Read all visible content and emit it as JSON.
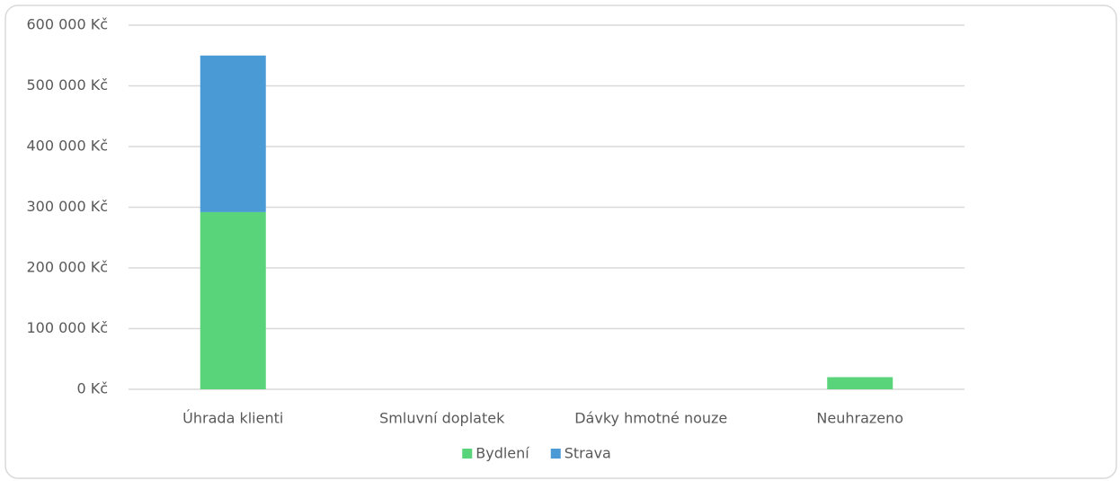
{
  "chart_data": {
    "type": "stacked_bar",
    "categories": [
      "Úhrada klienti",
      "Smluvní doplatek",
      "Dávky hmotné nouze",
      "Neuhrazeno"
    ],
    "series": [
      {
        "name": "Bydlení",
        "color": "#5ad47b",
        "values": [
          292000,
          0,
          0,
          20000
        ]
      },
      {
        "name": "Strava",
        "color": "#4a9ad6",
        "values": [
          258000,
          0,
          0,
          0
        ]
      }
    ],
    "ylim": [
      0,
      600000
    ],
    "yticks": [
      {
        "value": 0,
        "label": "0 Kč"
      },
      {
        "value": 100000,
        "label": "100 000 Kč"
      },
      {
        "value": 200000,
        "label": "200 000 Kč"
      },
      {
        "value": 300000,
        "label": "300 000 Kč"
      },
      {
        "value": 400000,
        "label": "400 000 Kč"
      },
      {
        "value": 500000,
        "label": "500 000 Kč"
      },
      {
        "value": 600000,
        "label": "600 000 Kč"
      }
    ],
    "grid": true,
    "legend": "bottom"
  }
}
